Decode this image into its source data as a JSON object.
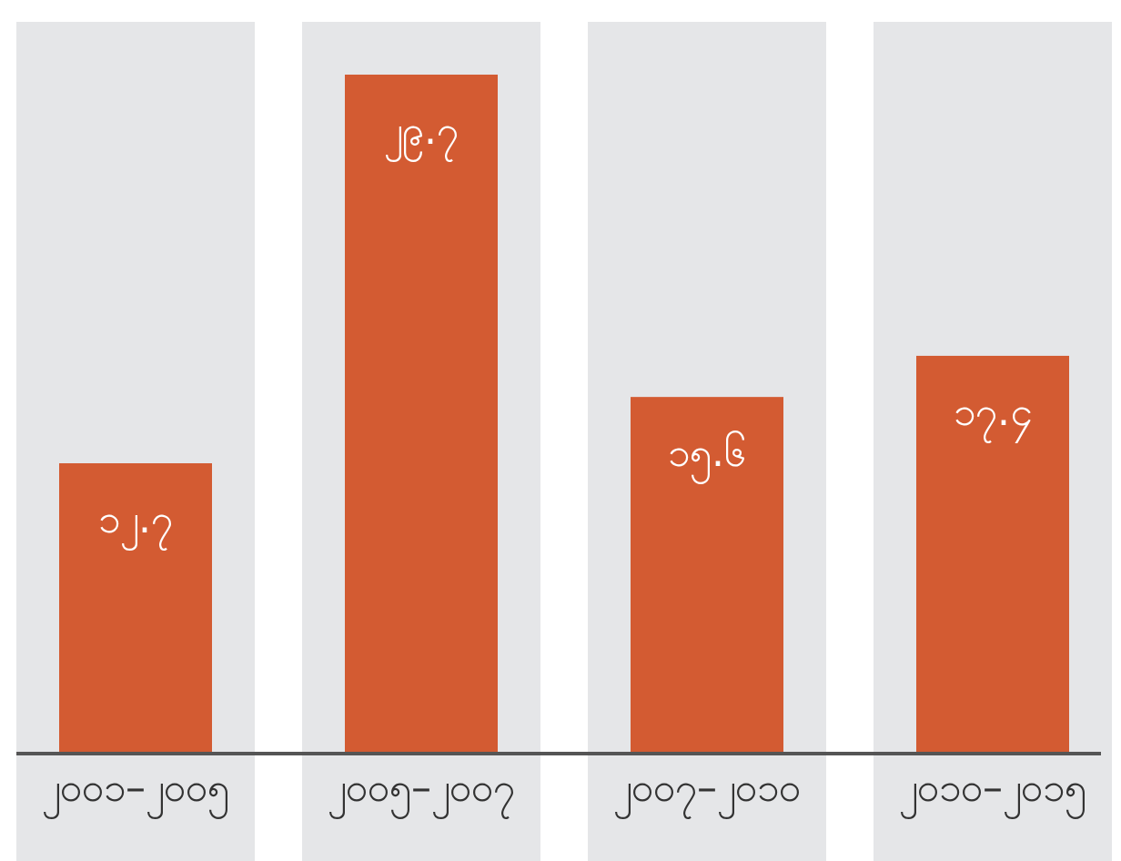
{
  "chart_data": {
    "type": "bar",
    "categories": [
      "၂၀၀၁–၂၀၀၅",
      "၂၀၀၅–၂၀၀၇",
      "၂၀၀၇–၂၀၁၀",
      "၂၀၁၀–၂၀၁၅"
    ],
    "values": [
      12.7,
      29.7,
      15.6,
      17.4
    ],
    "value_labels": [
      "၁၂.၇",
      "၂၉.၇",
      "၁၅.၆",
      "၁၇.၄"
    ],
    "color": "#d35b32"
  }
}
